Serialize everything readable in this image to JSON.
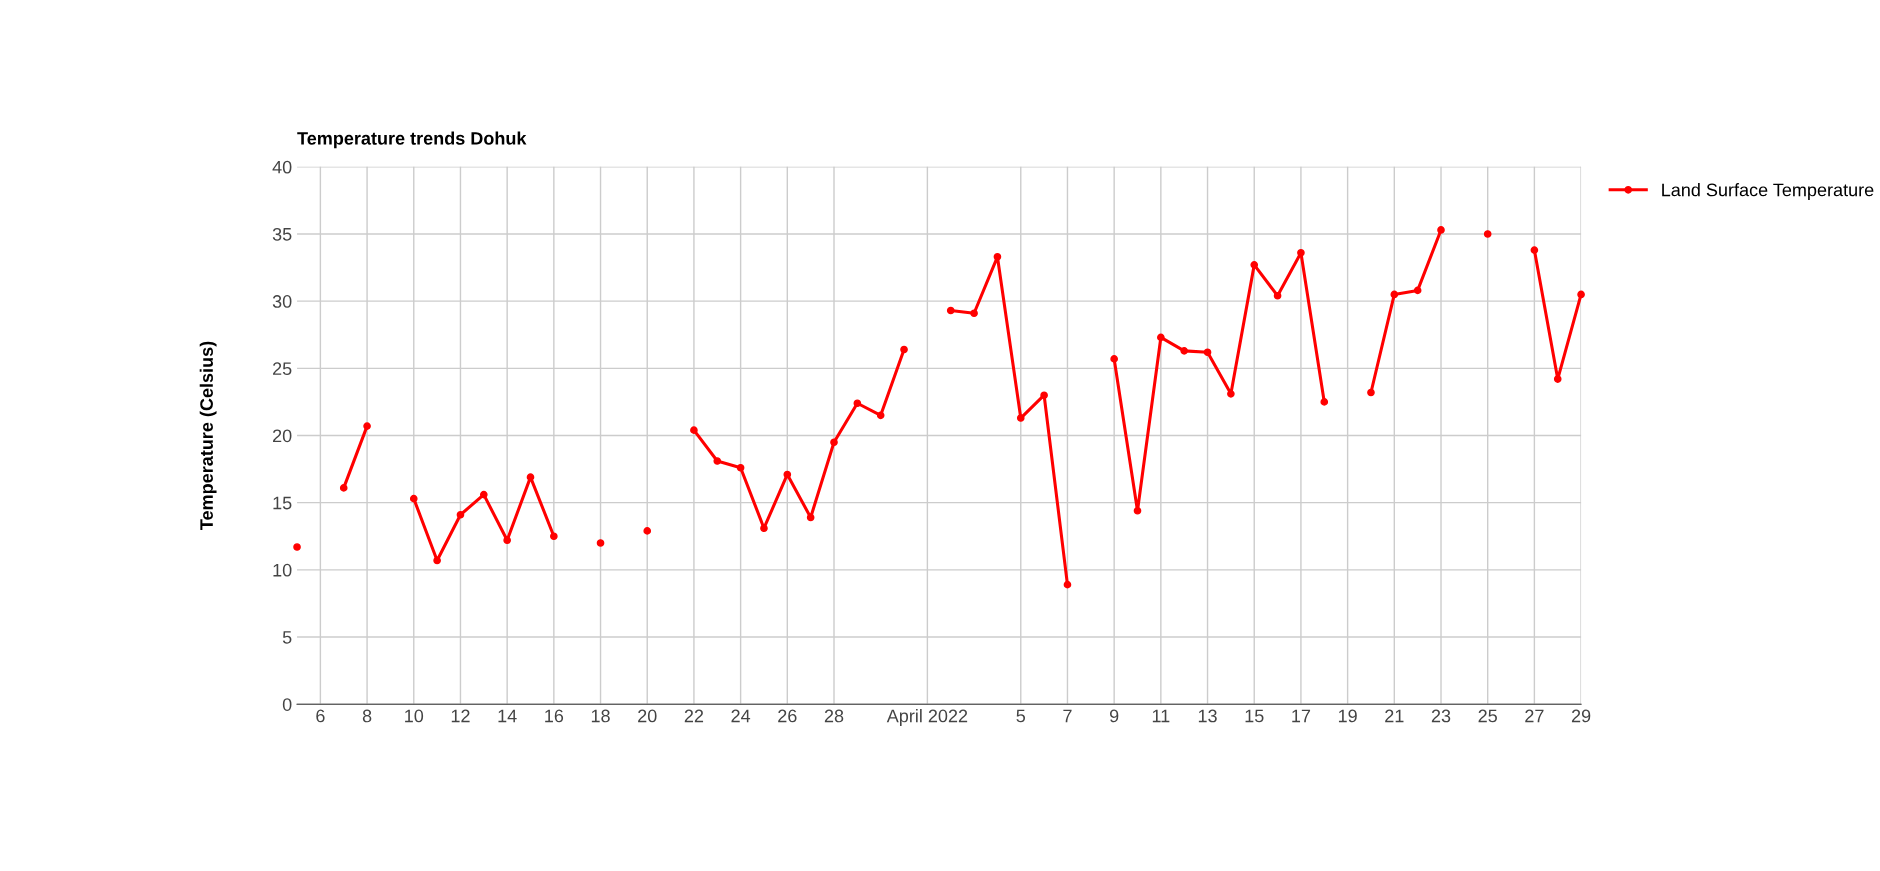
{
  "chart_data": {
    "type": "line",
    "title": "Temperature trends Dohuk",
    "ylabel": "Temperature (Celsius)",
    "x": [
      "2022-03-05",
      "2022-03-06",
      "2022-03-07",
      "2022-03-08",
      "2022-03-09",
      "2022-03-10",
      "2022-03-11",
      "2022-03-12",
      "2022-03-13",
      "2022-03-14",
      "2022-03-15",
      "2022-03-16",
      "2022-03-17",
      "2022-03-18",
      "2022-03-19",
      "2022-03-20",
      "2022-03-21",
      "2022-03-22",
      "2022-03-23",
      "2022-03-24",
      "2022-03-25",
      "2022-03-26",
      "2022-03-27",
      "2022-03-28",
      "2022-03-29",
      "2022-03-30",
      "2022-03-31",
      "2022-04-01",
      "2022-04-02",
      "2022-04-03",
      "2022-04-04",
      "2022-04-05",
      "2022-04-06",
      "2022-04-07",
      "2022-04-08",
      "2022-04-09",
      "2022-04-10",
      "2022-04-11",
      "2022-04-12",
      "2022-04-13",
      "2022-04-14",
      "2022-04-15",
      "2022-04-16",
      "2022-04-17",
      "2022-04-18",
      "2022-04-19",
      "2022-04-20",
      "2022-04-21",
      "2022-04-22",
      "2022-04-23",
      "2022-04-24",
      "2022-04-25",
      "2022-04-26",
      "2022-04-27",
      "2022-04-28",
      "2022-04-29"
    ],
    "series": [
      {
        "name": "Land Surface Temperature",
        "color": "#ff0000",
        "values": [
          11.7,
          null,
          16.1,
          20.7,
          null,
          15.3,
          10.7,
          14.1,
          15.6,
          12.2,
          16.9,
          12.5,
          null,
          12.0,
          null,
          12.9,
          null,
          20.4,
          18.1,
          17.6,
          13.1,
          17.1,
          13.9,
          19.5,
          22.4,
          21.5,
          26.4,
          null,
          29.3,
          29.1,
          33.3,
          21.3,
          23.0,
          8.9,
          null,
          25.7,
          14.4,
          27.3,
          26.3,
          26.2,
          23.1,
          32.7,
          30.4,
          33.6,
          22.5,
          null,
          23.2,
          30.5,
          30.8,
          35.3,
          null,
          35.0,
          null,
          33.8,
          24.2,
          30.5
        ]
      }
    ],
    "xlim": [
      "2022-03-05",
      "2022-04-29"
    ],
    "xticks": [
      {
        "value": "2022-03-06",
        "label": "6"
      },
      {
        "value": "2022-03-08",
        "label": "8"
      },
      {
        "value": "2022-03-10",
        "label": "10"
      },
      {
        "value": "2022-03-12",
        "label": "12"
      },
      {
        "value": "2022-03-14",
        "label": "14"
      },
      {
        "value": "2022-03-16",
        "label": "16"
      },
      {
        "value": "2022-03-18",
        "label": "18"
      },
      {
        "value": "2022-03-20",
        "label": "20"
      },
      {
        "value": "2022-03-22",
        "label": "22"
      },
      {
        "value": "2022-03-24",
        "label": "24"
      },
      {
        "value": "2022-03-26",
        "label": "26"
      },
      {
        "value": "2022-03-28",
        "label": "28"
      },
      {
        "value": "2022-04-01",
        "label": "April 2022"
      },
      {
        "value": "2022-04-05",
        "label": "5"
      },
      {
        "value": "2022-04-07",
        "label": "7"
      },
      {
        "value": "2022-04-09",
        "label": "9"
      },
      {
        "value": "2022-04-11",
        "label": "11"
      },
      {
        "value": "2022-04-13",
        "label": "13"
      },
      {
        "value": "2022-04-15",
        "label": "15"
      },
      {
        "value": "2022-04-17",
        "label": "17"
      },
      {
        "value": "2022-04-19",
        "label": "19"
      },
      {
        "value": "2022-04-21",
        "label": "21"
      },
      {
        "value": "2022-04-23",
        "label": "23"
      },
      {
        "value": "2022-04-25",
        "label": "25"
      },
      {
        "value": "2022-04-27",
        "label": "27"
      },
      {
        "value": "2022-04-29",
        "label": "29"
      }
    ],
    "ylim": [
      0,
      40
    ],
    "yticks": [
      0,
      5,
      10,
      15,
      20,
      25,
      30,
      35,
      40
    ],
    "grid": true,
    "legend": "top right",
    "marker": "circle",
    "line_style": "solid"
  }
}
